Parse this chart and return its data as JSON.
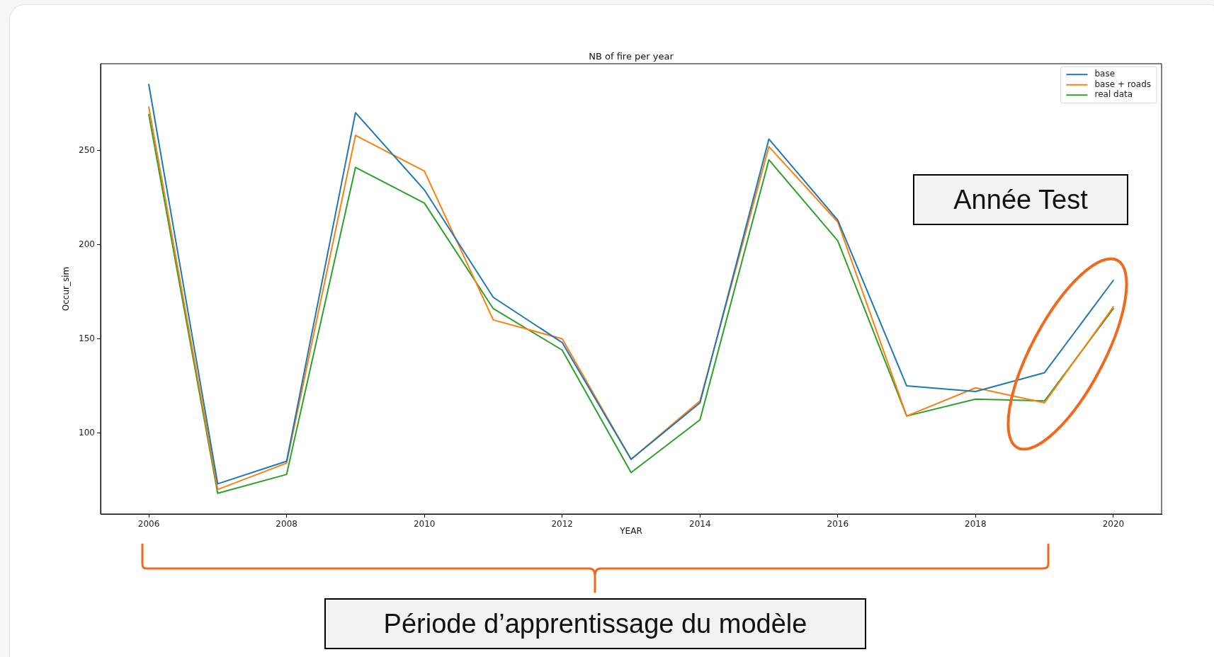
{
  "chart_data": {
    "type": "line",
    "title": "NB of fire per year",
    "xlabel": "YEAR",
    "ylabel": "Occur_sim",
    "x": [
      2006,
      2007,
      2008,
      2009,
      2010,
      2011,
      2012,
      2013,
      2014,
      2015,
      2016,
      2017,
      2018,
      2019,
      2020
    ],
    "series": [
      {
        "name": "base",
        "color": "#1f77b4",
        "values": [
          285,
          73,
          85,
          270,
          229,
          172,
          148,
          86,
          116,
          256,
          213,
          125,
          122,
          132,
          181
        ]
      },
      {
        "name": "base + roads",
        "color": "#ff7f0e",
        "values": [
          273,
          70,
          84,
          258,
          239,
          160,
          150,
          86,
          117,
          252,
          212,
          109,
          124,
          116,
          167
        ]
      },
      {
        "name": "real data",
        "color": "#2ca02c",
        "values": [
          269,
          68,
          78,
          241,
          222,
          166,
          144,
          79,
          107,
          245,
          202,
          109,
          118,
          117,
          166
        ]
      }
    ],
    "xlim": [
      2005.3,
      2020.7
    ],
    "xticks": [
      2006,
      2008,
      2010,
      2012,
      2014,
      2016,
      2018,
      2020
    ],
    "ylim": [
      57,
      296
    ],
    "yticks": [
      100,
      150,
      200,
      250
    ],
    "legend": "top right",
    "annotations": [
      "Année Test",
      "Période d’apprentissage du modèle"
    ]
  }
}
